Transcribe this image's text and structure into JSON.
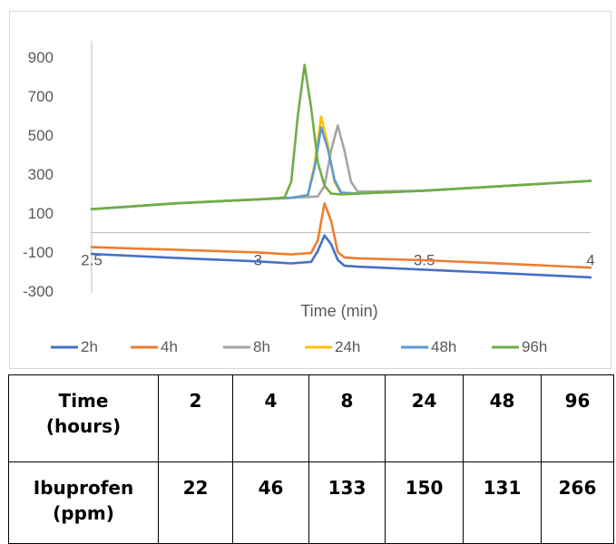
{
  "chart_data": {
    "type": "line",
    "title": "",
    "xlabel": "Time (min)",
    "ylabel": "",
    "xlim": [
      2.5,
      4
    ],
    "ylim": [
      -300,
      900
    ],
    "x_ticks": [
      "2.5",
      "3",
      "3.5",
      "4"
    ],
    "y_ticks": [
      "900",
      "700",
      "500",
      "300",
      "100",
      "-100",
      "-300"
    ],
    "legend_position": "bottom",
    "series": [
      {
        "name": "2h",
        "color": "#4472C4",
        "x": [
          2.5,
          2.75,
          3.0,
          3.1,
          3.16,
          3.18,
          3.2,
          3.22,
          3.24,
          3.26,
          3.3,
          3.5,
          3.75,
          4.0
        ],
        "y": [
          -110,
          -130,
          -148,
          -158,
          -150,
          -95,
          -15,
          -60,
          -140,
          -170,
          -175,
          -190,
          -210,
          -230
        ]
      },
      {
        "name": "4h",
        "color": "#ED7D31",
        "x": [
          2.5,
          2.75,
          3.0,
          3.1,
          3.16,
          3.18,
          3.2,
          3.22,
          3.24,
          3.26,
          3.3,
          3.5,
          3.75,
          4.0
        ],
        "y": [
          -75,
          -88,
          -102,
          -112,
          -104,
          -40,
          150,
          60,
          -100,
          -128,
          -132,
          -142,
          -160,
          -180
        ]
      },
      {
        "name": "8h",
        "color": "#A5A5A5",
        "x": [
          2.5,
          2.75,
          3.0,
          3.1,
          3.18,
          3.2,
          3.22,
          3.24,
          3.26,
          3.28,
          3.3,
          3.5,
          3.75,
          4.0
        ],
        "y": [
          120,
          150,
          170,
          178,
          185,
          240,
          420,
          550,
          420,
          260,
          210,
          215,
          240,
          265
        ]
      },
      {
        "name": "24h",
        "color": "#FFC000",
        "x": [
          2.5,
          2.75,
          3.0,
          3.1,
          3.15,
          3.17,
          3.19,
          3.21,
          3.23,
          3.25,
          3.3,
          3.5,
          3.75,
          4.0
        ],
        "y": [
          120,
          150,
          170,
          178,
          190,
          350,
          595,
          450,
          260,
          200,
          200,
          215,
          240,
          265
        ]
      },
      {
        "name": "48h",
        "color": "#5B9BD5",
        "x": [
          2.5,
          2.75,
          3.0,
          3.1,
          3.15,
          3.17,
          3.19,
          3.21,
          3.23,
          3.25,
          3.3,
          3.5,
          3.75,
          4.0
        ],
        "y": [
          120,
          150,
          170,
          178,
          192,
          330,
          540,
          430,
          270,
          205,
          200,
          215,
          240,
          265
        ]
      },
      {
        "name": "96h",
        "color": "#70AD47",
        "x": [
          2.5,
          2.75,
          3.0,
          3.08,
          3.1,
          3.12,
          3.14,
          3.16,
          3.18,
          3.2,
          3.22,
          3.25,
          3.3,
          3.5,
          3.75,
          4.0
        ],
        "y": [
          120,
          150,
          170,
          180,
          260,
          600,
          860,
          640,
          360,
          240,
          200,
          196,
          200,
          215,
          240,
          265
        ]
      }
    ]
  },
  "table": {
    "rows": [
      {
        "header": [
          "Time",
          "(hours)"
        ],
        "values": [
          "2",
          "4",
          "8",
          "24",
          "48",
          "96"
        ]
      },
      {
        "header": [
          "Ibuprofen",
          "(ppm)"
        ],
        "values": [
          "22",
          "46",
          "133",
          "150",
          "131",
          "266"
        ]
      }
    ]
  }
}
